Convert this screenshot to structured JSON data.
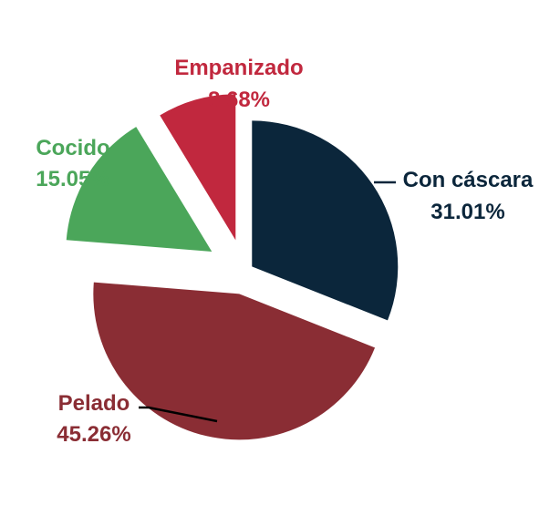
{
  "chart_data": {
    "type": "pie",
    "exploded": true,
    "title": "",
    "legend": "none",
    "slices": [
      {
        "name": "Con cáscara",
        "value": 31.01,
        "label": "31.01%",
        "color": "#0B263B"
      },
      {
        "name": "Pelado",
        "value": 45.26,
        "label": "45.26%",
        "color": "#8A2D34"
      },
      {
        "name": "Cocido",
        "value": 15.05,
        "label": "15.05%",
        "color": "#4BA65A"
      },
      {
        "name": "Empanizado",
        "value": 8.68,
        "label": "8.68%",
        "color": "#C1283E"
      }
    ]
  }
}
